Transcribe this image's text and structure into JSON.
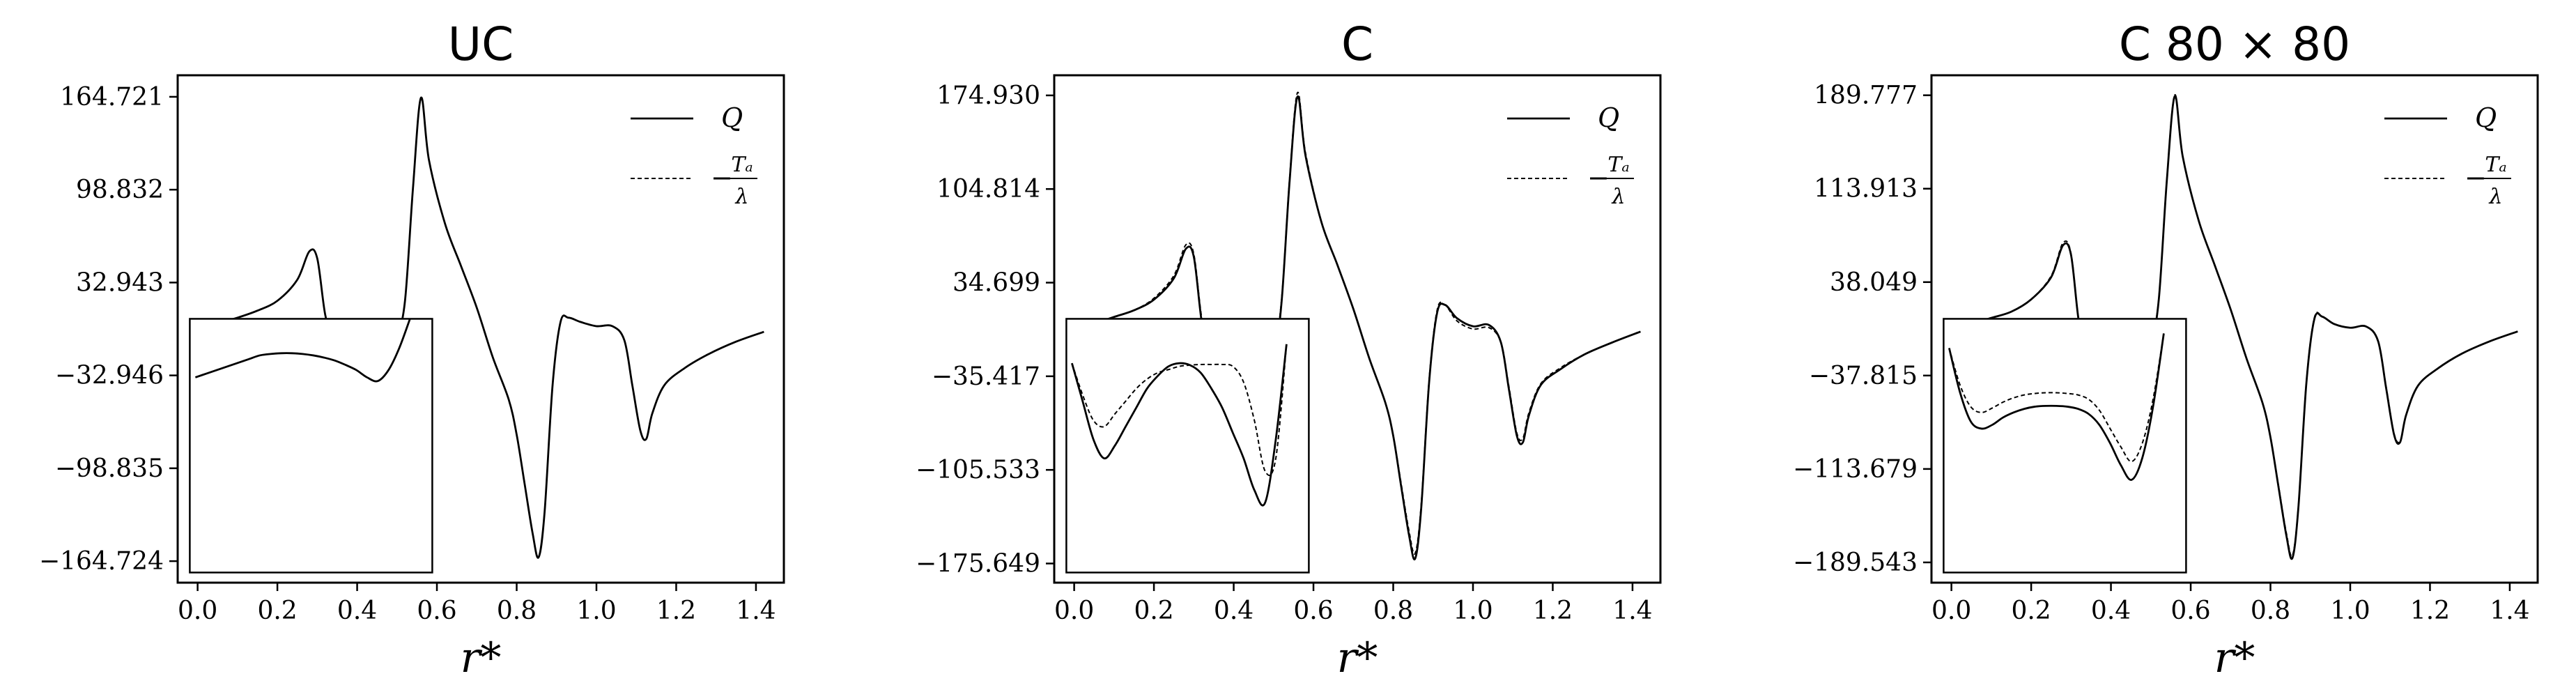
{
  "chart_data": [
    {
      "type": "line",
      "title": "UC",
      "xlabel": "r*",
      "ylabel": "",
      "xlim": [
        -0.05,
        1.47
      ],
      "ylim": [
        -180,
        180
      ],
      "xticks": [
        0.0,
        0.2,
        0.4,
        0.6,
        0.8,
        1.0,
        1.2,
        1.4
      ],
      "xtick_labels": [
        "0.0",
        "0.2",
        "0.4",
        "0.6",
        "0.8",
        "1.0",
        "1.2",
        "1.4"
      ],
      "yticks": [
        164.721,
        98.832,
        32.943,
        -32.946,
        -98.835,
        -164.724
      ],
      "ytick_labels": [
        "164.721",
        "98.832",
        "32.943",
        "−32.946",
        "−98.835",
        "−164.724"
      ],
      "legend_position": "top-right",
      "series": [
        {
          "name": "Q",
          "style": "solid",
          "x": [
            0.0,
            0.05,
            0.1,
            0.15,
            0.2,
            0.25,
            0.28,
            0.3,
            0.32,
            0.34,
            0.36,
            0.4,
            0.44,
            0.48,
            0.5,
            0.52,
            0.54,
            0.56,
            0.58,
            0.62,
            0.66,
            0.7,
            0.74,
            0.78,
            0.8,
            0.82,
            0.84,
            0.855,
            0.87,
            0.89,
            0.91,
            0.93,
            0.96,
            1.0,
            1.04,
            1.07,
            1.09,
            1.11,
            1.125,
            1.14,
            1.17,
            1.22,
            1.28,
            1.35,
            1.42
          ],
          "y": [
            0,
            4,
            8,
            13,
            20,
            35,
            55,
            50,
            10,
            -6,
            -4,
            -3,
            -3.5,
            -6,
            -4,
            20,
            100,
            164,
            120,
            75,
            45,
            15,
            -20,
            -50,
            -75,
            -110,
            -145,
            -162,
            -130,
            -40,
            5,
            8,
            5,
            2,
            2,
            -8,
            -40,
            -72,
            -78,
            -60,
            -40,
            -28,
            -18,
            -9,
            -2
          ]
        }
      ],
      "inset": {
        "zoom_x": [
          0.31,
          0.54
        ],
        "zoom_y": [
          -24,
          2
        ],
        "series_y": [
          [
            -6,
            -5.5,
            -5,
            -4.5,
            -4,
            -3.5,
            -3,
            -2.8,
            -2.7,
            -2.7,
            -2.8,
            -3,
            -3.3,
            -3.7,
            -4.3,
            -5,
            -6,
            -6.5,
            -5,
            -2,
            2
          ]
        ]
      }
    },
    {
      "type": "line",
      "title": "C",
      "xlabel": "r*",
      "ylabel": "",
      "xlim": [
        -0.05,
        1.47
      ],
      "ylim": [
        -190,
        190
      ],
      "xticks": [
        0.0,
        0.2,
        0.4,
        0.6,
        0.8,
        1.0,
        1.2,
        1.4
      ],
      "xtick_labels": [
        "0.0",
        "0.2",
        "0.4",
        "0.6",
        "0.8",
        "1.0",
        "1.2",
        "1.4"
      ],
      "yticks": [
        174.93,
        104.814,
        34.699,
        -35.417,
        -105.533,
        -175.649
      ],
      "ytick_labels": [
        "174.930",
        "104.814",
        "34.699",
        "−35.417",
        "−105.533",
        "−175.649"
      ],
      "legend_position": "top-right",
      "series": [
        {
          "name": "Q",
          "style": "solid",
          "x": [
            0.0,
            0.05,
            0.1,
            0.15,
            0.2,
            0.25,
            0.28,
            0.3,
            0.32,
            0.34,
            0.36,
            0.4,
            0.44,
            0.48,
            0.5,
            0.52,
            0.54,
            0.56,
            0.58,
            0.62,
            0.66,
            0.7,
            0.74,
            0.78,
            0.8,
            0.82,
            0.84,
            0.855,
            0.87,
            0.89,
            0.91,
            0.93,
            0.96,
            1.0,
            1.04,
            1.07,
            1.09,
            1.11,
            1.125,
            1.14,
            1.17,
            1.22,
            1.28,
            1.35,
            1.42
          ],
          "y": [
            0,
            4,
            9,
            14,
            22,
            38,
            60,
            54,
            5,
            -18,
            -12,
            -5,
            -8,
            -20,
            -24,
            20,
            110,
            174,
            130,
            80,
            48,
            15,
            -22,
            -55,
            -80,
            -118,
            -155,
            -172,
            -135,
            -40,
            12,
            18,
            8,
            2,
            3,
            -10,
            -45,
            -80,
            -85,
            -65,
            -42,
            -30,
            -19,
            -10,
            -2
          ]
        },
        {
          "name": "−Ta/λ",
          "style": "dashed",
          "x": [
            0.0,
            0.05,
            0.1,
            0.15,
            0.2,
            0.25,
            0.28,
            0.3,
            0.32,
            0.34,
            0.36,
            0.4,
            0.44,
            0.48,
            0.5,
            0.52,
            0.54,
            0.56,
            0.58,
            0.62,
            0.66,
            0.7,
            0.74,
            0.78,
            0.8,
            0.82,
            0.84,
            0.855,
            0.87,
            0.89,
            0.91,
            0.93,
            0.96,
            1.0,
            1.04,
            1.07,
            1.09,
            1.11,
            1.125,
            1.14,
            1.17,
            1.22,
            1.28,
            1.35,
            1.42
          ],
          "y": [
            0,
            4,
            9,
            14,
            23,
            40,
            63,
            56,
            8,
            -14,
            -10,
            -5,
            -5,
            -14,
            -18,
            22,
            112,
            177,
            132,
            80,
            48,
            15,
            -22,
            -55,
            -80,
            -116,
            -152,
            -168,
            -132,
            -38,
            14,
            18,
            6,
            0,
            1,
            -10,
            -43,
            -78,
            -82,
            -63,
            -41,
            -29,
            -19,
            -10,
            -2
          ]
        }
      ],
      "inset": {
        "zoom_x": [
          0.31,
          0.54
        ],
        "zoom_y": [
          -26,
          4
        ],
        "series_y": [
          [
            -3,
            -9,
            -15,
            -18,
            -16,
            -13,
            -10,
            -7,
            -5,
            -3.5,
            -3,
            -3.3,
            -4.5,
            -7,
            -10,
            -14,
            -18,
            -23,
            -25,
            -15,
            0
          ],
          [
            -3,
            -8,
            -12,
            -13,
            -11,
            -9,
            -7,
            -5.5,
            -4.5,
            -4,
            -3.5,
            -3.3,
            -3.2,
            -3.2,
            -3.2,
            -3.5,
            -6,
            -12,
            -20,
            -18,
            0
          ]
        ]
      }
    },
    {
      "type": "line",
      "title": "C 80 × 80",
      "xlabel": "r*",
      "ylabel": "",
      "xlim": [
        -0.05,
        1.47
      ],
      "ylim": [
        -206,
        206
      ],
      "xticks": [
        0.0,
        0.2,
        0.4,
        0.6,
        0.8,
        1.0,
        1.2,
        1.4
      ],
      "xtick_labels": [
        "0.0",
        "0.2",
        "0.4",
        "0.6",
        "0.8",
        "1.0",
        "1.2",
        "1.4"
      ],
      "yticks": [
        189.777,
        113.913,
        38.049,
        -37.815,
        -113.679,
        -189.543
      ],
      "ytick_labels": [
        "189.777",
        "113.913",
        "38.049",
        "−37.815",
        "−113.679",
        "−189.543"
      ],
      "legend_position": "top-right",
      "series": [
        {
          "name": "Q",
          "style": "solid",
          "x": [
            0.0,
            0.05,
            0.1,
            0.15,
            0.2,
            0.25,
            0.28,
            0.3,
            0.32,
            0.34,
            0.36,
            0.4,
            0.44,
            0.48,
            0.5,
            0.52,
            0.54,
            0.56,
            0.58,
            0.62,
            0.66,
            0.7,
            0.74,
            0.78,
            0.8,
            0.82,
            0.84,
            0.855,
            0.87,
            0.89,
            0.91,
            0.93,
            0.96,
            1.0,
            1.04,
            1.07,
            1.09,
            1.11,
            1.125,
            1.14,
            1.17,
            1.22,
            1.28,
            1.35,
            1.42
          ],
          "y": [
            0,
            4,
            9,
            14,
            24,
            42,
            68,
            60,
            5,
            -12,
            -9,
            -7,
            -7,
            -12,
            -14,
            24,
            120,
            189,
            140,
            88,
            52,
            16,
            -24,
            -60,
            -88,
            -128,
            -168,
            -186,
            -145,
            -44,
            8,
            10,
            4,
            1,
            2,
            -10,
            -48,
            -86,
            -92,
            -70,
            -46,
            -32,
            -20,
            -10,
            -2
          ]
        },
        {
          "name": "−Ta/λ",
          "style": "dashed",
          "x": [
            0.0,
            0.05,
            0.1,
            0.15,
            0.2,
            0.25,
            0.28,
            0.3,
            0.32,
            0.34,
            0.36,
            0.4,
            0.44,
            0.48,
            0.5,
            0.52,
            0.54,
            0.56,
            0.58,
            0.62,
            0.66,
            0.7,
            0.74,
            0.78,
            0.8,
            0.82,
            0.84,
            0.855,
            0.87,
            0.89,
            0.91,
            0.93,
            0.96,
            1.0,
            1.04,
            1.07,
            1.09,
            1.11,
            1.125,
            1.14,
            1.17,
            1.22,
            1.28,
            1.35,
            1.42
          ],
          "y": [
            0,
            4,
            9,
            14,
            24,
            43,
            70,
            61,
            6,
            -10,
            -8,
            -5,
            -5,
            -9,
            -11,
            25,
            121,
            190,
            140,
            88,
            52,
            16,
            -24,
            -60,
            -88,
            -127,
            -166,
            -184,
            -144,
            -43,
            9,
            10,
            4,
            1,
            2,
            -10,
            -47,
            -85,
            -91,
            -70,
            -46,
            -32,
            -20,
            -10,
            -2
          ]
        }
      ],
      "inset": {
        "zoom_x": [
          0.31,
          0.54
        ],
        "zoom_y": [
          -24,
          2
        ],
        "series_y": [
          [
            -2,
            -8,
            -12,
            -13,
            -12.5,
            -11.5,
            -10.8,
            -10.3,
            -10,
            -9.9,
            -9.9,
            -10,
            -10.3,
            -11,
            -12.5,
            -15,
            -18,
            -20,
            -17,
            -10,
            0
          ],
          [
            -2,
            -7,
            -10,
            -10.8,
            -10.2,
            -9.4,
            -8.8,
            -8.4,
            -8.2,
            -8.1,
            -8.1,
            -8.2,
            -8.4,
            -9,
            -10.5,
            -13,
            -15.5,
            -17.5,
            -15,
            -9,
            0
          ]
        ]
      }
    }
  ]
}
